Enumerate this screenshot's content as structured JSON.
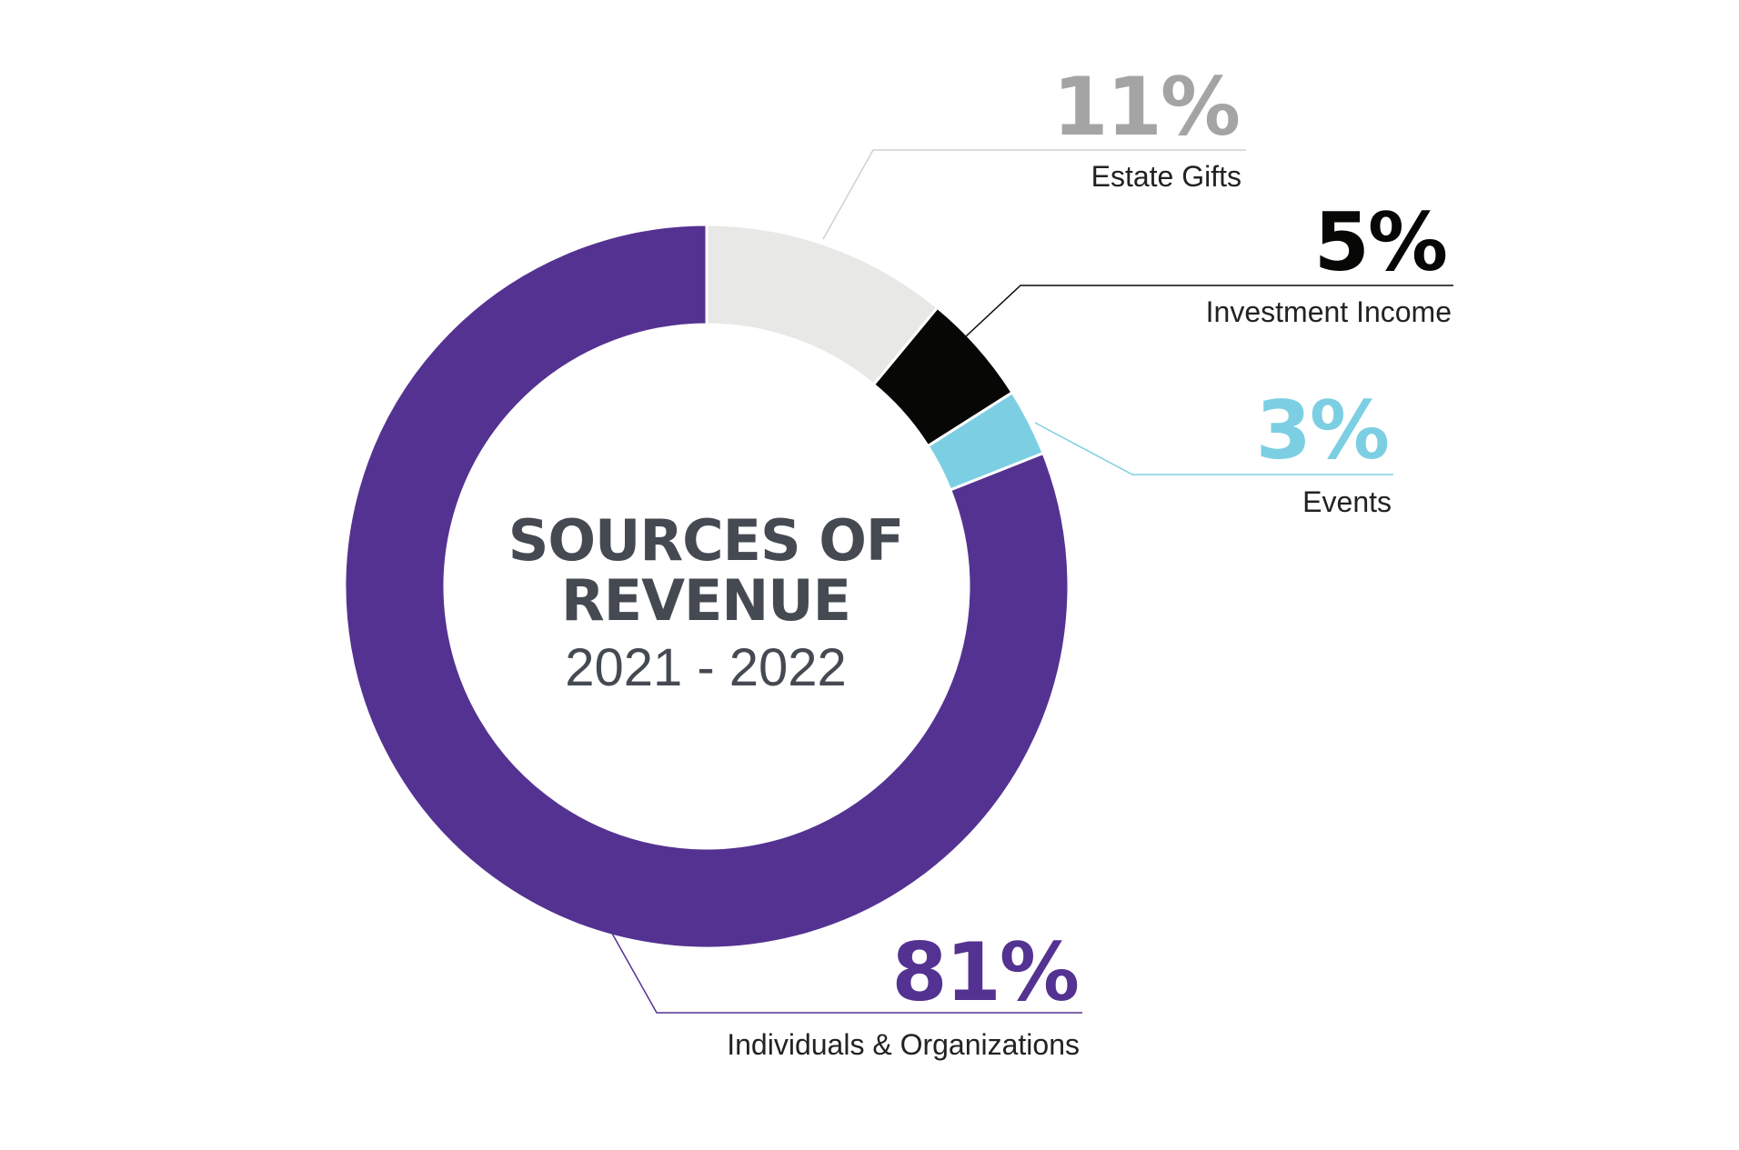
{
  "chart_data": {
    "type": "pie",
    "title": "SOURCES OF REVENUE",
    "title_line1": "SOURCES OF",
    "title_line2": "REVENUE",
    "subtitle": "2021 - 2022",
    "slices": [
      {
        "label": "Estate Gifts",
        "value": 11,
        "value_label": "11%",
        "color": "#e8e8e6",
        "text_color": "#a4a4a4",
        "line_color": "#d0d0d0"
      },
      {
        "label": "Investment Income",
        "value": 5,
        "value_label": "5%",
        "color": "#070806",
        "text_color": "#070806",
        "line_color": "#070806"
      },
      {
        "label": "Events",
        "value": 3,
        "value_label": "3%",
        "color": "#7ccfe3",
        "text_color": "#7ccfe3",
        "line_color": "#7ccfe3"
      },
      {
        "label": "Individuals & Organizations",
        "value": 81,
        "value_label": "81%",
        "color": "#543291",
        "text_color": "#543291",
        "line_color": "#543291"
      }
    ],
    "legend": "none",
    "grid": false
  }
}
